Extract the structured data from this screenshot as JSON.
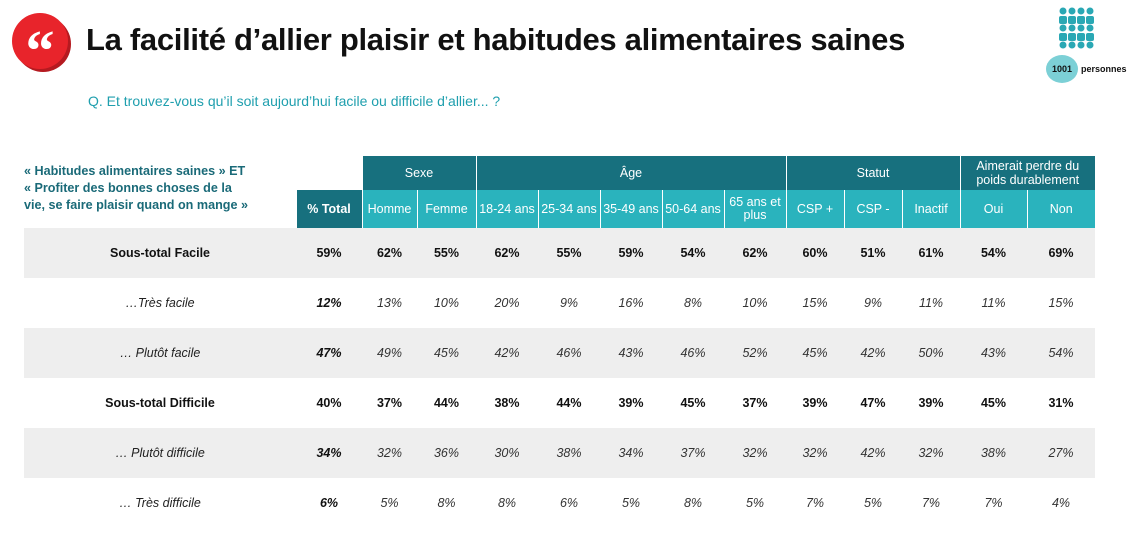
{
  "header": {
    "quote_glyph": "“",
    "title": "La facilité d’allier plaisir et habitudes alimentaires saines",
    "badge_count": "1001",
    "badge_label": "personnes",
    "question": "Q. Et trouvez-vous qu’il soit aujourd’hui facile ou difficile d’allier... ?"
  },
  "row_description": [
    "« Habitudes alimentaires saines » ET",
    "« Profiter des bonnes choses de la",
    "vie, se faire plaisir quand on mange »"
  ],
  "table": {
    "groups": [
      "Sexe",
      "Âge",
      "Statut",
      "Aimerait perdre du poids durablement"
    ],
    "total_label": "% Total",
    "columns": [
      "Homme",
      "Femme",
      "18-24 ans",
      "25-34 ans",
      "35-49 ans",
      "50-64 ans",
      "65 ans et plus",
      "CSP +",
      "CSP -",
      "Inactif",
      "Oui",
      "Non"
    ],
    "rows": [
      {
        "label": "Sous-total Facile",
        "total": "59%",
        "values": [
          "62%",
          "55%",
          "62%",
          "55%",
          "59%",
          "54%",
          "62%",
          "60%",
          "51%",
          "61%",
          "54%",
          "69%"
        ]
      },
      {
        "label": "…Très facile",
        "total": "12%",
        "values": [
          "13%",
          "10%",
          "20%",
          "9%",
          "16%",
          "8%",
          "10%",
          "15%",
          "9%",
          "11%",
          "11%",
          "15%"
        ]
      },
      {
        "label": "… Plutôt facile",
        "total": "47%",
        "values": [
          "49%",
          "45%",
          "42%",
          "46%",
          "43%",
          "46%",
          "52%",
          "45%",
          "42%",
          "50%",
          "43%",
          "54%"
        ]
      },
      {
        "label": "Sous-total Difficile",
        "total": "40%",
        "values": [
          "37%",
          "44%",
          "38%",
          "44%",
          "39%",
          "45%",
          "37%",
          "39%",
          "47%",
          "39%",
          "45%",
          "31%"
        ]
      },
      {
        "label": "… Plutôt difficile",
        "total": "34%",
        "values": [
          "32%",
          "36%",
          "30%",
          "38%",
          "34%",
          "37%",
          "32%",
          "32%",
          "42%",
          "32%",
          "38%",
          "27%"
        ]
      },
      {
        "label": "… Très difficile",
        "total": "6%",
        "values": [
          "5%",
          "8%",
          "8%",
          "6%",
          "5%",
          "8%",
          "5%",
          "7%",
          "5%",
          "7%",
          "7%",
          "4%"
        ]
      }
    ]
  }
}
